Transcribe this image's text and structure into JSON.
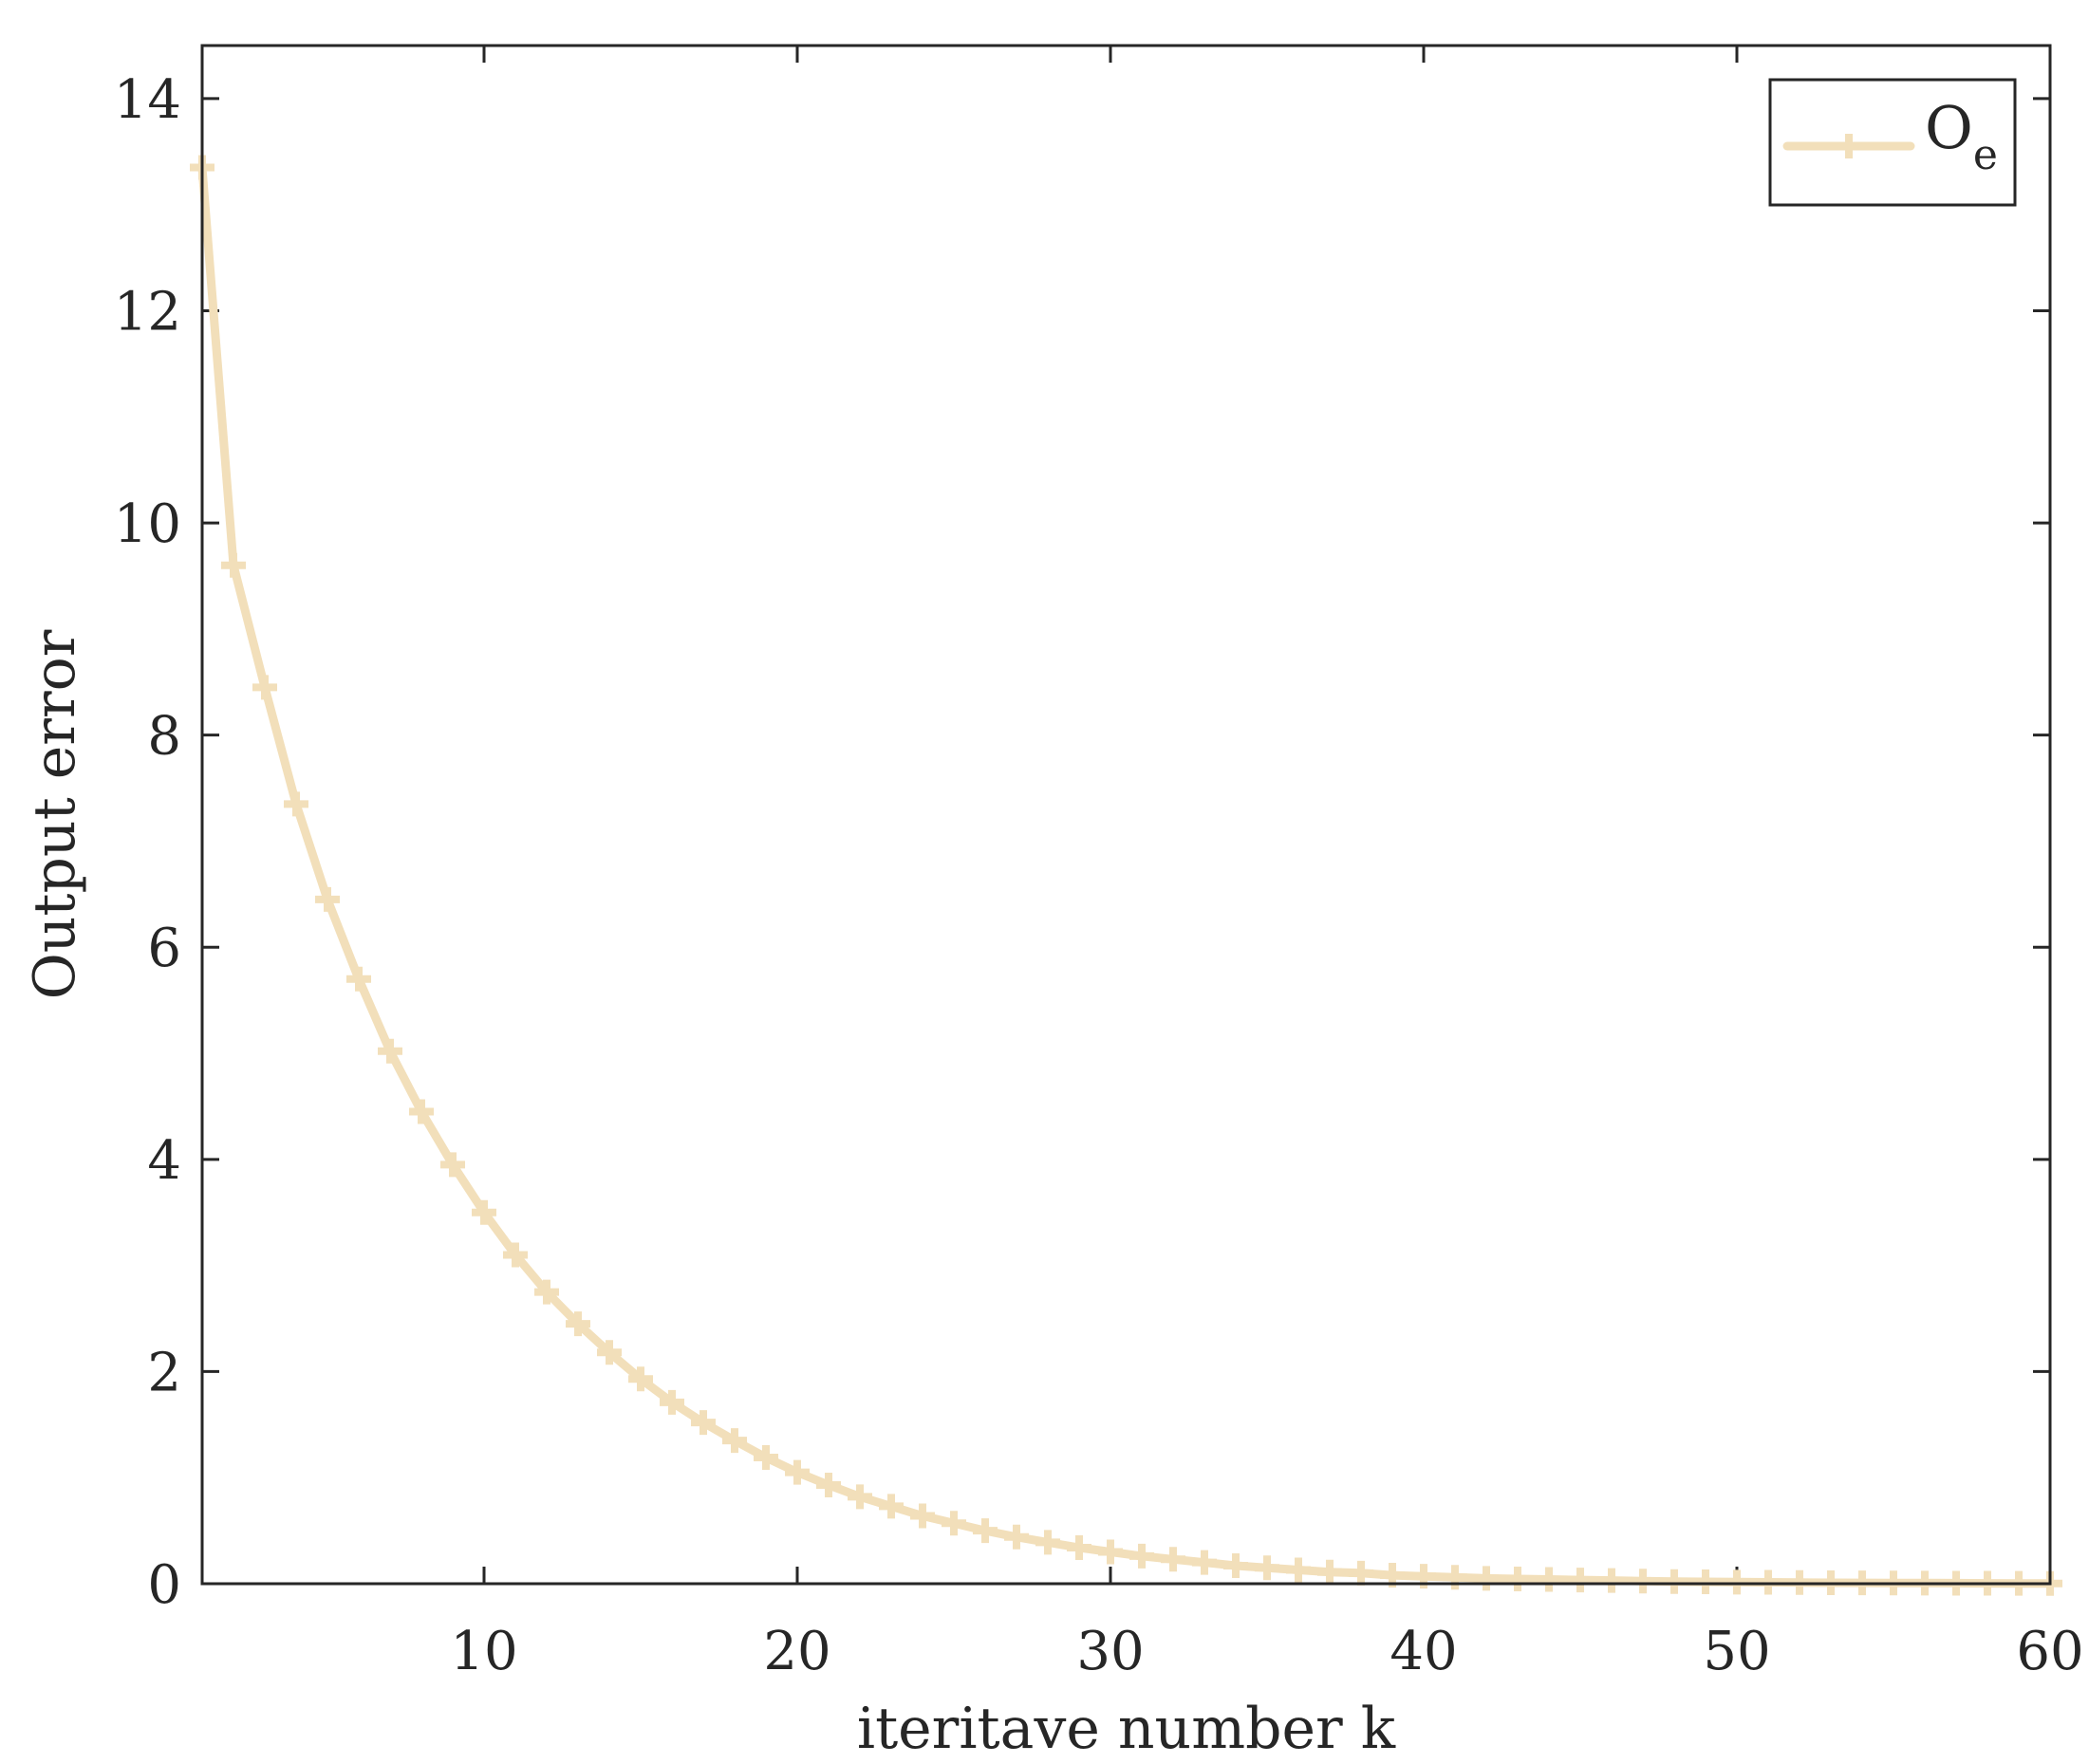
{
  "chart_data": {
    "type": "line",
    "title": "",
    "xlabel": "iteritave number k",
    "ylabel": "Output error",
    "xlim": [
      1,
      60
    ],
    "ylim": [
      0,
      14.5
    ],
    "xticks": [
      10,
      20,
      30,
      40,
      50,
      60
    ],
    "yticks": [
      0,
      2,
      4,
      6,
      8,
      10,
      12,
      14
    ],
    "grid": false,
    "legend_position": "top-right",
    "series": [
      {
        "name": "O",
        "name_subscript": "e",
        "color": "#f2dfba",
        "marker": "plus",
        "x": [
          1,
          2,
          3,
          4,
          5,
          6,
          7,
          8,
          9,
          10,
          11,
          12,
          13,
          14,
          15,
          16,
          17,
          18,
          19,
          20,
          21,
          22,
          23,
          24,
          25,
          26,
          27,
          28,
          29,
          30,
          31,
          32,
          33,
          34,
          35,
          36,
          37,
          38,
          39,
          40,
          41,
          42,
          43,
          44,
          45,
          46,
          47,
          48,
          49,
          50,
          51,
          52,
          53,
          54,
          55,
          56,
          57,
          58,
          59,
          60
        ],
        "values": [
          13.35,
          9.6,
          8.45,
          7.35,
          6.45,
          5.7,
          5.02,
          4.45,
          3.95,
          3.5,
          3.1,
          2.75,
          2.45,
          2.18,
          1.93,
          1.71,
          1.52,
          1.35,
          1.19,
          1.05,
          0.93,
          0.82,
          0.73,
          0.64,
          0.57,
          0.5,
          0.44,
          0.39,
          0.34,
          0.3,
          0.26,
          0.23,
          0.2,
          0.17,
          0.15,
          0.13,
          0.11,
          0.1,
          0.08,
          0.07,
          0.06,
          0.05,
          0.045,
          0.04,
          0.035,
          0.03,
          0.025,
          0.02,
          0.018,
          0.015,
          0.013,
          0.011,
          0.009,
          0.008,
          0.007,
          0.006,
          0.005,
          0.004,
          0.003,
          0.002
        ]
      }
    ]
  }
}
